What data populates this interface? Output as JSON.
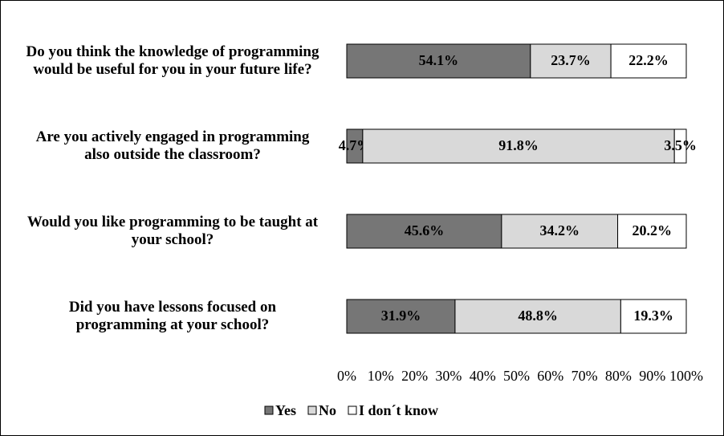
{
  "chart_data": {
    "type": "stacked-bar-horizontal",
    "categories": [
      "Do you think the knowledge of programming\nwould be useful for you in your future life?",
      "Are you actively engaged in programming\nalso outside the classroom?",
      "Would you like programming to be taught at\nyour school?",
      "Did you have lessons focused on\nprogramming at your school?"
    ],
    "series": [
      {
        "name": "Yes",
        "color": "#767676",
        "values": [
          54.1,
          4.7,
          45.6,
          31.9
        ],
        "value_labels": [
          "54.1%",
          "4.7%",
          "45.6%",
          "31.9%"
        ]
      },
      {
        "name": "No",
        "color": "#d9d9d9",
        "values": [
          23.7,
          91.8,
          34.2,
          48.8
        ],
        "value_labels": [
          "23.7%",
          "91.8%",
          "34.2%",
          "48.8%"
        ]
      },
      {
        "name": "I don´t know",
        "color": "#ffffff",
        "values": [
          22.2,
          3.5,
          20.2,
          19.3
        ],
        "value_labels": [
          "22.2%",
          "3.5%",
          "20.2%",
          "19.3%"
        ]
      }
    ],
    "xlim": [
      0,
      100
    ],
    "xticks": [
      {
        "value": 0,
        "label": "0%"
      },
      {
        "value": 10,
        "label": "10%"
      },
      {
        "value": 20,
        "label": "20%"
      },
      {
        "value": 30,
        "label": "30%"
      },
      {
        "value": 40,
        "label": "40%"
      },
      {
        "value": 50,
        "label": "50%"
      },
      {
        "value": 60,
        "label": "60%"
      },
      {
        "value": 70,
        "label": "70%"
      },
      {
        "value": 80,
        "label": "80%"
      },
      {
        "value": 90,
        "label": "90%"
      },
      {
        "value": 100,
        "label": "100%"
      }
    ],
    "legend": "bottom"
  }
}
